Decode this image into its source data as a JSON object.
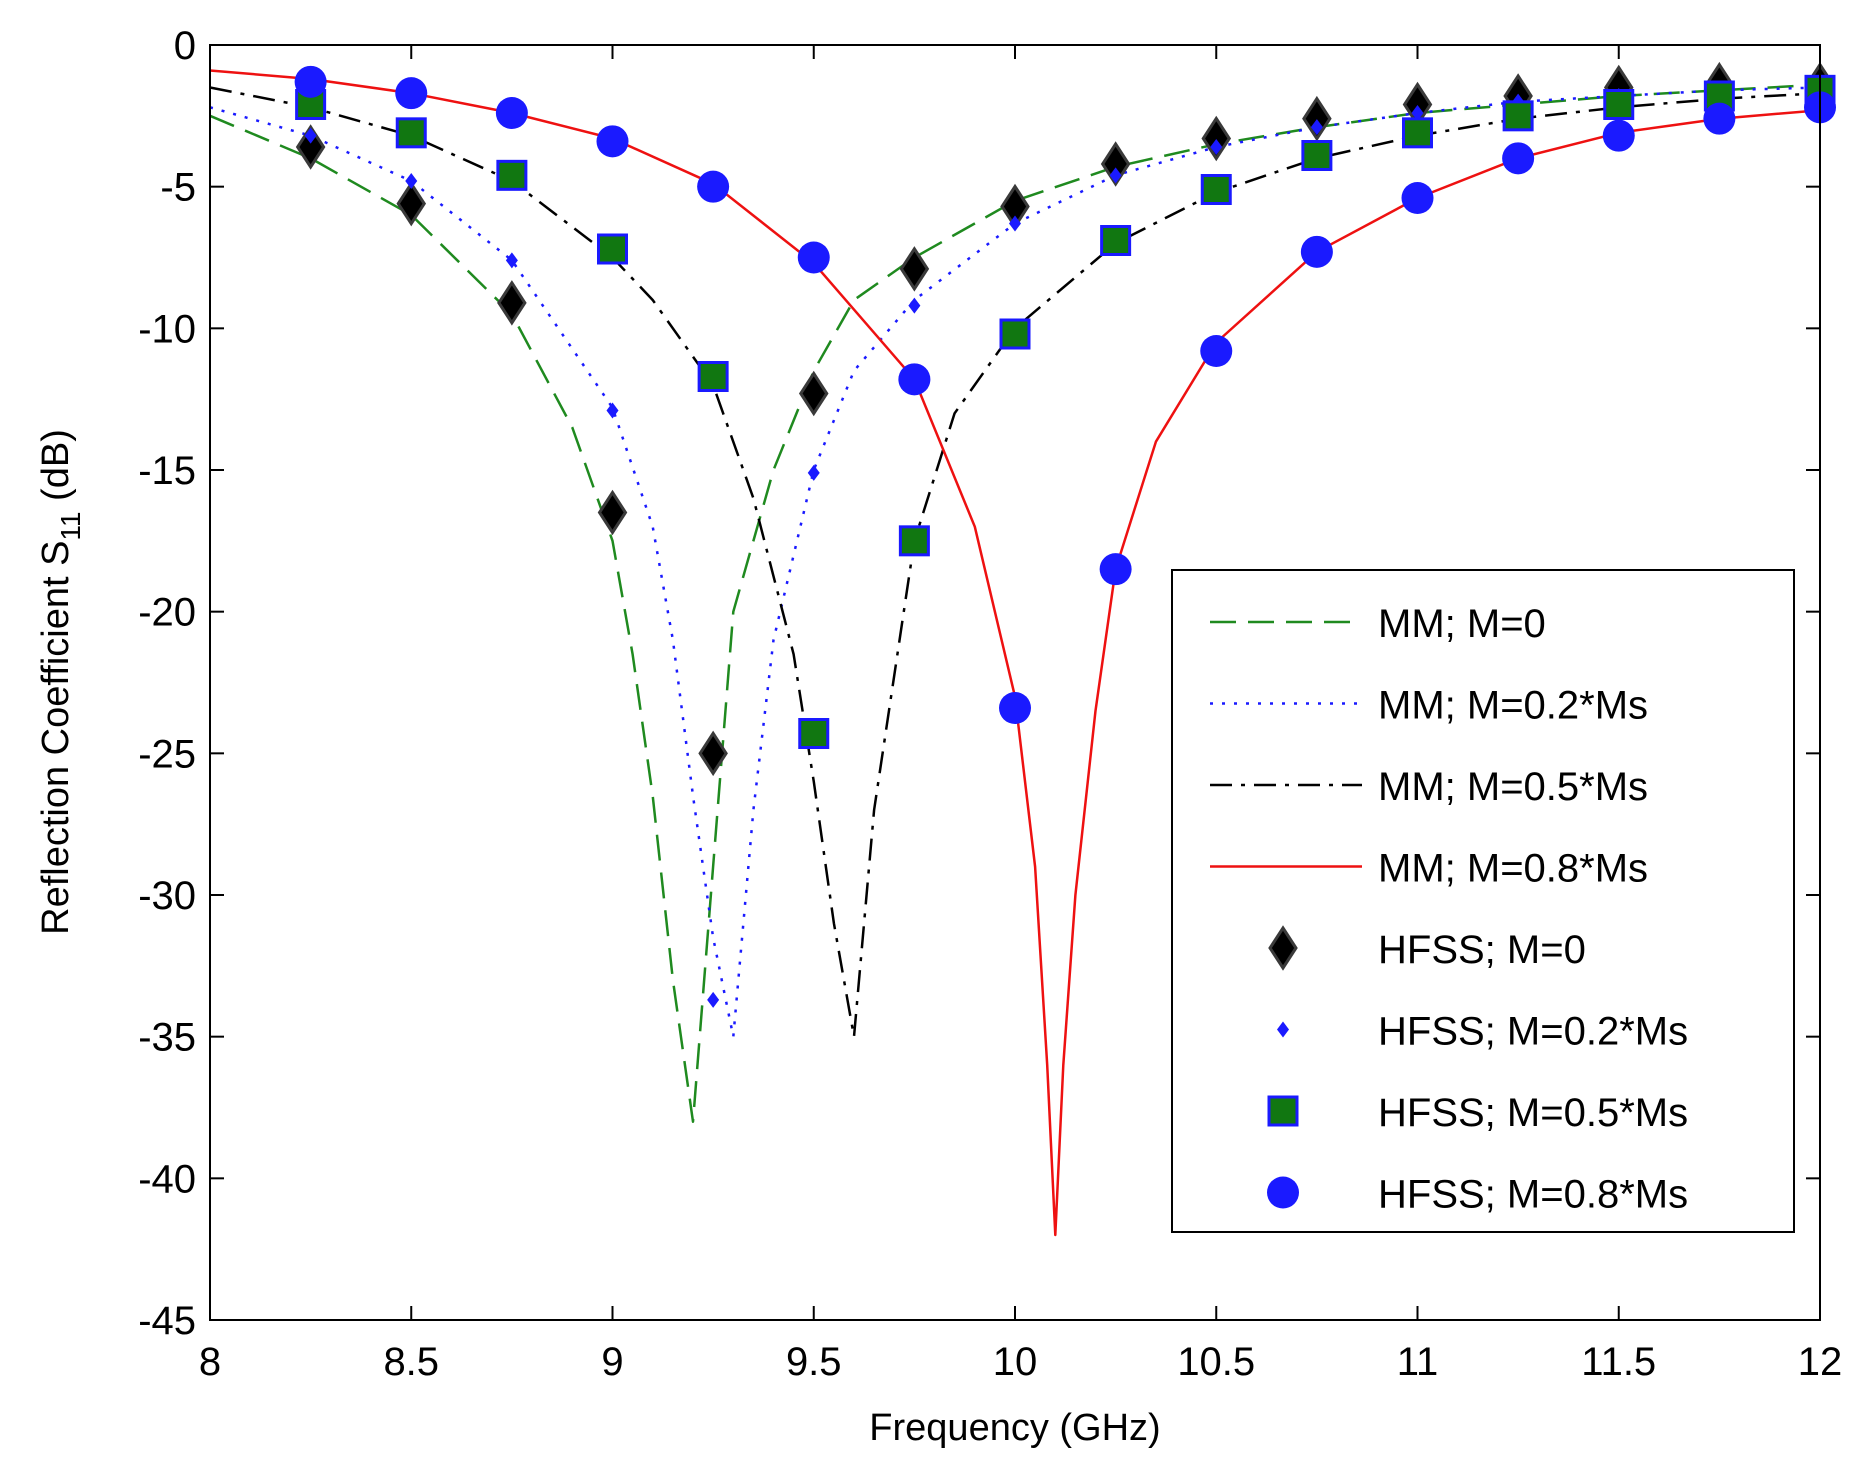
{
  "chart_data": {
    "type": "line",
    "title": "",
    "xlabel": "Frequency (GHz)",
    "ylabel": {
      "main": "Reflection Coefficient S",
      "subscript": "11",
      "unit": " (dB)"
    },
    "xlim": [
      8,
      12
    ],
    "ylim": [
      -45,
      0
    ],
    "xticks": [
      8,
      8.5,
      9,
      9.5,
      10,
      10.5,
      11,
      11.5,
      12
    ],
    "xtick_labels": [
      "8",
      "8.5",
      "9",
      "9.5",
      "10",
      "10.5",
      "11",
      "11.5",
      "12"
    ],
    "yticks": [
      0,
      -5,
      -10,
      -15,
      -20,
      -25,
      -30,
      -35,
      -40,
      -45
    ],
    "ytick_labels": [
      "0",
      "-5",
      "-10",
      "-15",
      "-20",
      "-25",
      "-30",
      "-35",
      "-40",
      "-45"
    ],
    "grid": false,
    "legend_position": "bottom-right",
    "series": [
      {
        "name": "MM; M=0",
        "kind": "line",
        "style": "dashed",
        "color": "#1f8a1f",
        "x": [
          8,
          8.25,
          8.5,
          8.75,
          8.9,
          9.0,
          9.05,
          9.1,
          9.15,
          9.2,
          9.25,
          9.3,
          9.4,
          9.5,
          9.6,
          9.75,
          10,
          10.25,
          10.5,
          10.75,
          11,
          11.25,
          11.5,
          11.75,
          12
        ],
        "y": [
          -2.5,
          -4.0,
          -6.0,
          -9.5,
          -13.5,
          -17.5,
          -21.5,
          -26.5,
          -33.0,
          -38.0,
          -29.0,
          -20.0,
          -15.0,
          -11.5,
          -9.0,
          -7.5,
          -5.5,
          -4.3,
          -3.5,
          -2.9,
          -2.4,
          -2.1,
          -1.8,
          -1.6,
          -1.4
        ]
      },
      {
        "name": "MM; M=0.2*Ms",
        "kind": "line",
        "style": "dotted",
        "color": "#1a1aff",
        "x": [
          8,
          8.25,
          8.5,
          8.75,
          9.0,
          9.1,
          9.15,
          9.2,
          9.25,
          9.3,
          9.35,
          9.4,
          9.5,
          9.6,
          9.75,
          10,
          10.25,
          10.5,
          10.75,
          11,
          11.25,
          11.5,
          11.75,
          12
        ],
        "y": [
          -2.2,
          -3.2,
          -4.8,
          -7.6,
          -12.8,
          -17.0,
          -21.0,
          -26.5,
          -31.5,
          -35.0,
          -27.0,
          -21.0,
          -15.0,
          -11.5,
          -9.0,
          -6.3,
          -4.6,
          -3.6,
          -2.9,
          -2.4,
          -2.0,
          -1.8,
          -1.6,
          -1.5
        ]
      },
      {
        "name": "MM; M=0.5*Ms",
        "kind": "line",
        "style": "dashdot",
        "color": "#000000",
        "x": [
          8,
          8.25,
          8.5,
          8.75,
          9.0,
          9.1,
          9.25,
          9.35,
          9.45,
          9.5,
          9.55,
          9.6,
          9.65,
          9.75,
          9.85,
          10,
          10.25,
          10.5,
          10.75,
          11,
          11.25,
          11.5,
          11.75,
          12
        ],
        "y": [
          -1.5,
          -2.2,
          -3.2,
          -4.8,
          -7.5,
          -9.0,
          -12.0,
          -16.0,
          -21.5,
          -26.0,
          -31.0,
          -35.0,
          -27.0,
          -17.5,
          -13.0,
          -10.0,
          -7.0,
          -5.2,
          -4.0,
          -3.2,
          -2.6,
          -2.2,
          -1.9,
          -1.7
        ]
      },
      {
        "name": "MM; M=0.8*Ms",
        "kind": "line",
        "style": "solid",
        "color": "#ee1111",
        "x": [
          8,
          8.25,
          8.5,
          8.75,
          9.0,
          9.25,
          9.5,
          9.75,
          9.9,
          10.0,
          10.05,
          10.08,
          10.1,
          10.12,
          10.15,
          10.2,
          10.25,
          10.35,
          10.5,
          10.75,
          11,
          11.25,
          11.5,
          11.75,
          12
        ],
        "y": [
          -0.9,
          -1.2,
          -1.7,
          -2.4,
          -3.3,
          -4.9,
          -7.7,
          -11.8,
          -17.0,
          -23.0,
          -29.0,
          -36.0,
          -42.0,
          -36.0,
          -30.0,
          -23.5,
          -18.5,
          -14.0,
          -10.5,
          -7.3,
          -5.4,
          -4.0,
          -3.1,
          -2.6,
          -2.3
        ]
      },
      {
        "name": "HFSS; M=0",
        "kind": "marker",
        "marker": "diamond",
        "color": "#000000",
        "x": [
          8.25,
          8.5,
          8.75,
          9.0,
          9.25,
          9.5,
          9.75,
          10.0,
          10.25,
          10.5,
          10.75,
          11.0,
          11.25,
          11.5,
          11.75,
          12.0
        ],
        "y": [
          -3.6,
          -5.6,
          -9.1,
          -16.5,
          -25.0,
          -12.3,
          -7.9,
          -5.7,
          -4.2,
          -3.3,
          -2.6,
          -2.1,
          -1.8,
          -1.5,
          -1.4,
          -1.4
        ]
      },
      {
        "name": "HFSS; M=0.2*Ms",
        "kind": "marker",
        "marker": "small-diamond",
        "color": "#1a1aff",
        "x": [
          8.25,
          8.5,
          8.75,
          9.0,
          9.25,
          9.5,
          9.75,
          10.0,
          10.25,
          10.5,
          10.75,
          11.0,
          11.25,
          11.5,
          11.75,
          12.0
        ],
        "y": [
          -3.2,
          -4.8,
          -7.6,
          -12.9,
          -33.7,
          -15.1,
          -9.2,
          -6.3,
          -4.6,
          -3.6,
          -2.9,
          -2.4,
          -2.0,
          -1.8,
          -1.6,
          -1.5
        ]
      },
      {
        "name": "HFSS; M=0.5*Ms",
        "kind": "marker",
        "marker": "square",
        "color": "#117711",
        "x": [
          8.25,
          8.5,
          8.75,
          9.0,
          9.25,
          9.5,
          9.75,
          10.0,
          10.25,
          10.5,
          10.75,
          11.0,
          11.25,
          11.5,
          11.75,
          12.0
        ],
        "y": [
          -2.1,
          -3.1,
          -4.6,
          -7.2,
          -11.7,
          -24.3,
          -17.5,
          -10.2,
          -6.9,
          -5.1,
          -3.9,
          -3.1,
          -2.5,
          -2.1,
          -1.8,
          -1.6
        ]
      },
      {
        "name": "HFSS; M=0.8*Ms",
        "kind": "marker",
        "marker": "circle",
        "color": "#1a1aff",
        "x": [
          8.25,
          8.5,
          8.75,
          9.0,
          9.25,
          9.5,
          9.75,
          10.0,
          10.25,
          10.5,
          10.75,
          11.0,
          11.25,
          11.5,
          11.75,
          12.0
        ],
        "y": [
          -1.3,
          -1.7,
          -2.4,
          -3.4,
          -5.0,
          -7.5,
          -11.8,
          -23.4,
          -18.5,
          -10.8,
          -7.3,
          -5.4,
          -4.0,
          -3.2,
          -2.6,
          -2.2
        ]
      }
    ]
  }
}
